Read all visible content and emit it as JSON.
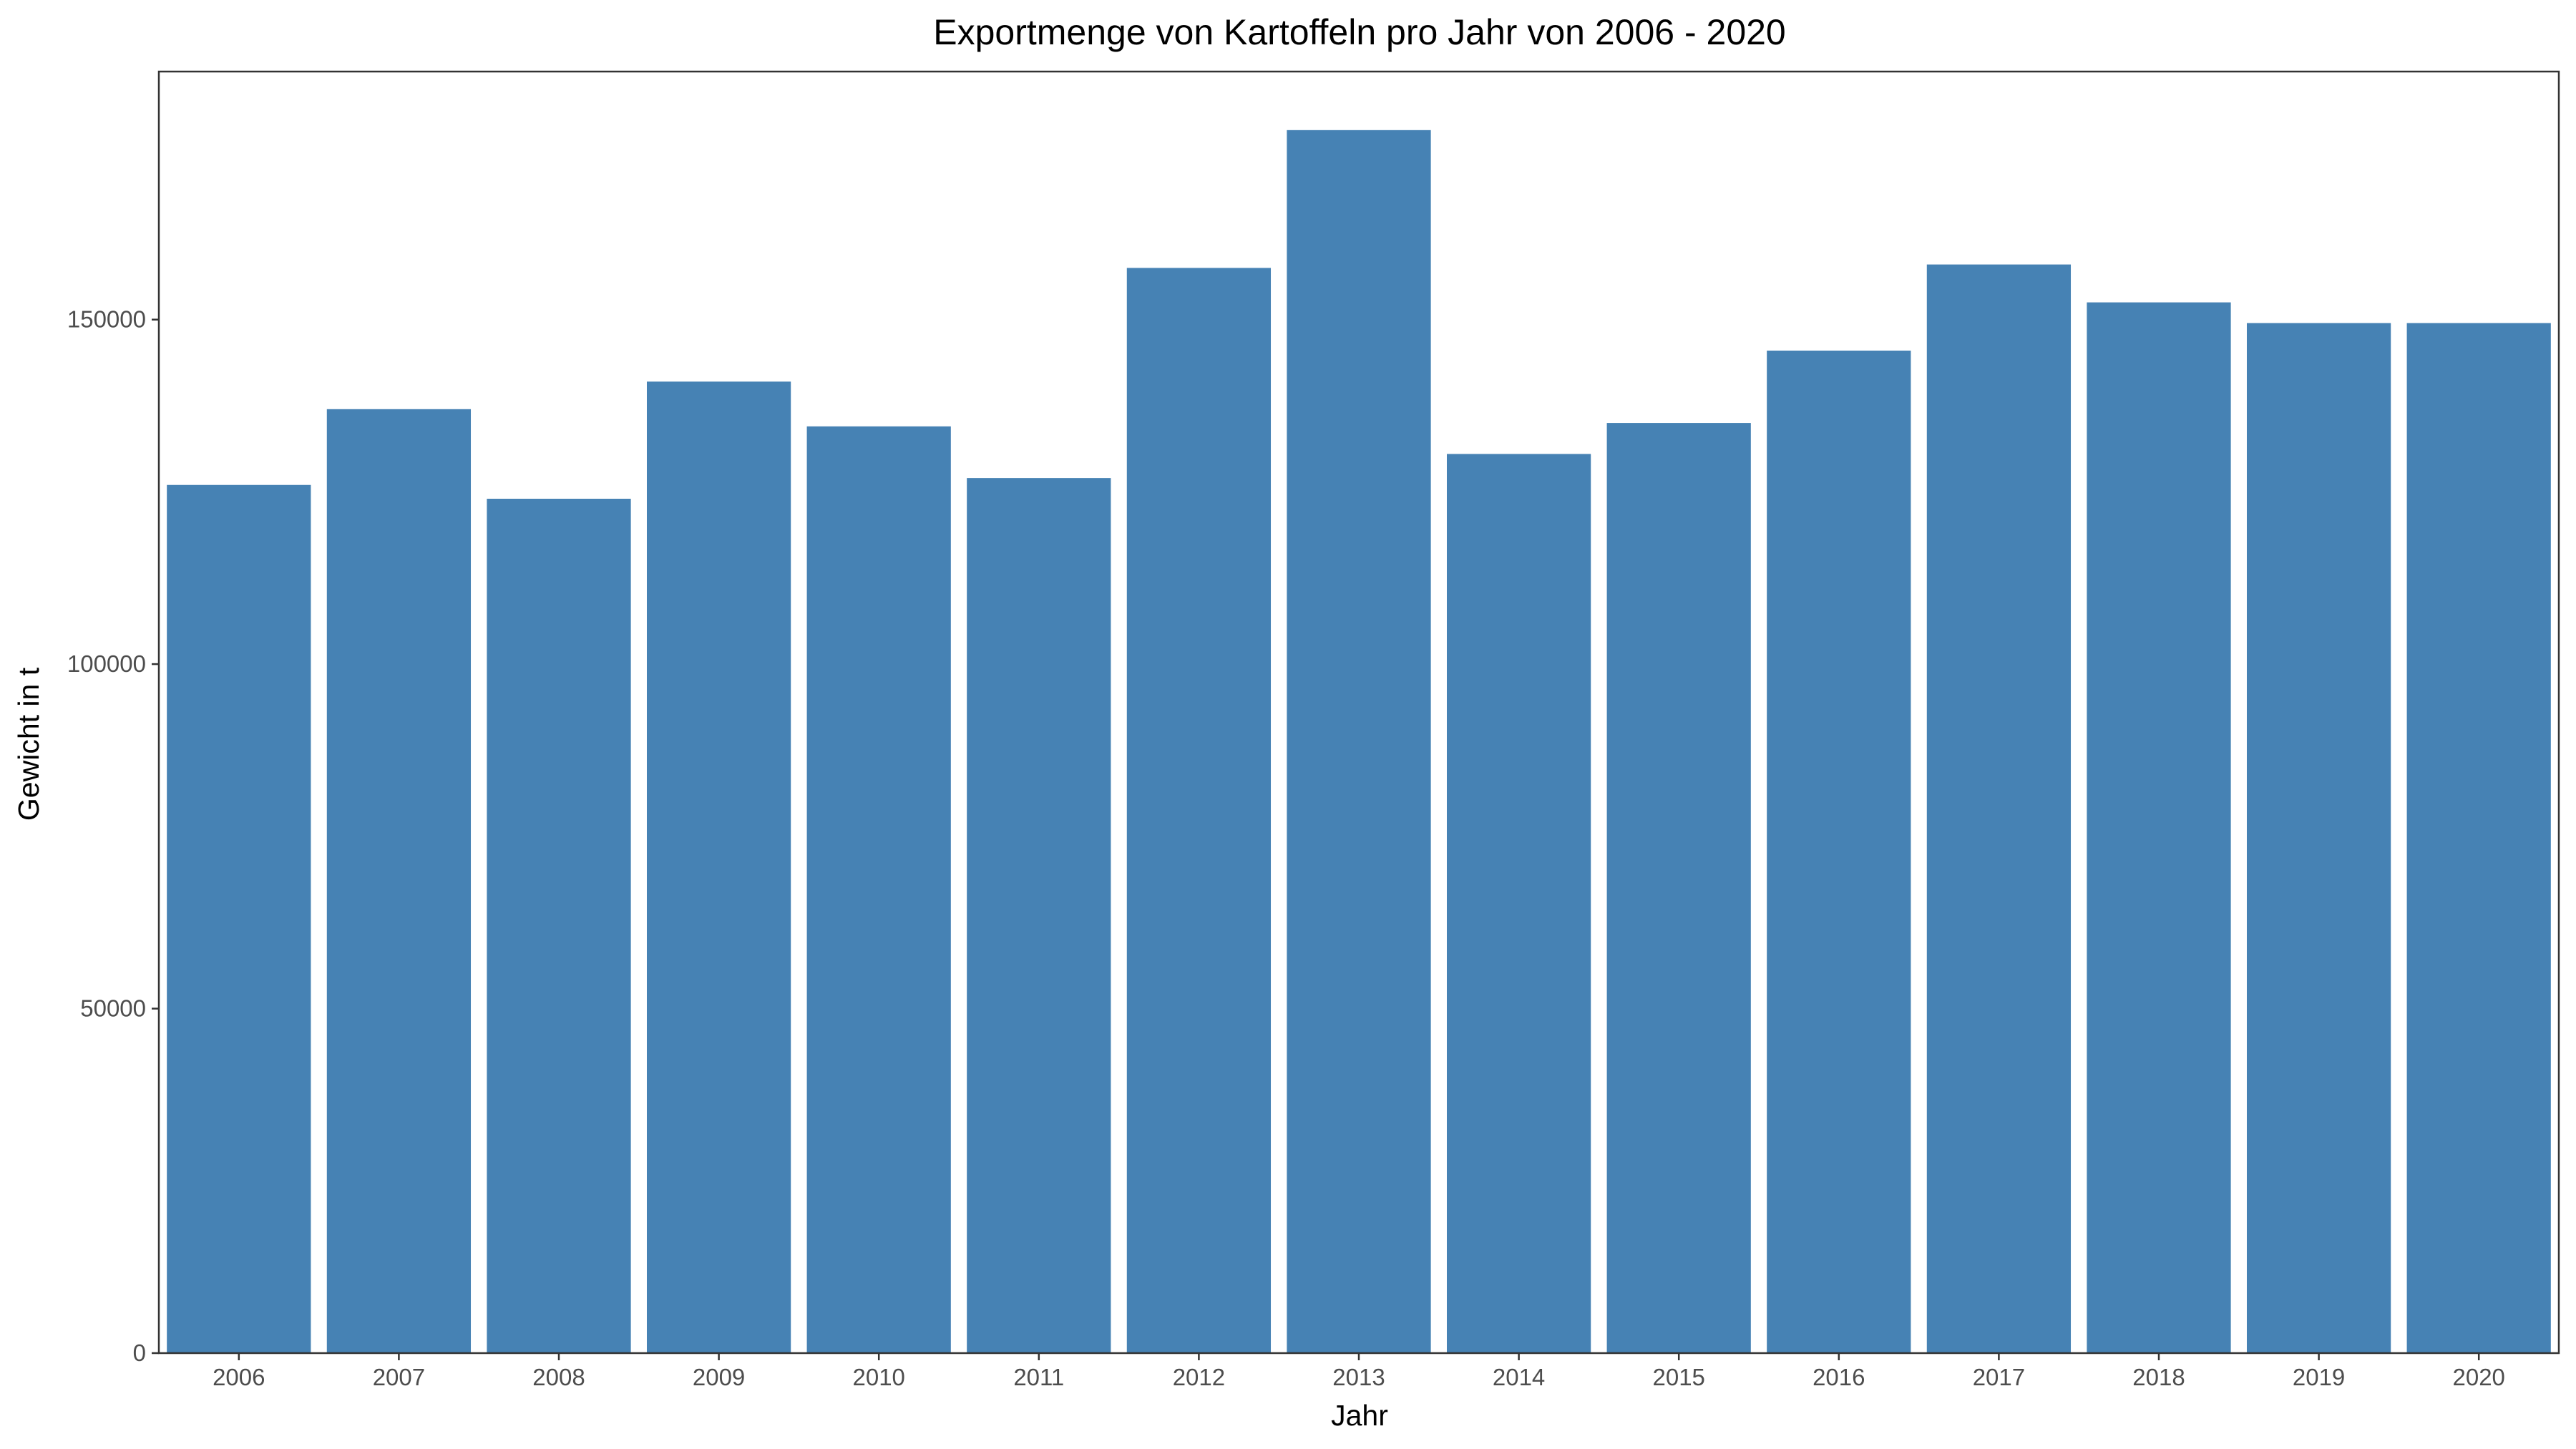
{
  "chart_data": {
    "type": "bar",
    "title": "Exportmenge von Kartoffeln pro Jahr von 2006 - 2020",
    "xlabel": "Jahr",
    "ylabel": "Gewicht in t",
    "categories": [
      "2006",
      "2007",
      "2008",
      "2009",
      "2010",
      "2011",
      "2012",
      "2013",
      "2014",
      "2015",
      "2016",
      "2017",
      "2018",
      "2019",
      "2020"
    ],
    "values": [
      126000,
      137000,
      124000,
      141000,
      134500,
      127000,
      157500,
      177500,
      130500,
      135000,
      145500,
      158000,
      152500,
      149500,
      149500
    ],
    "ylim": [
      0,
      186000
    ],
    "yticks": [
      0,
      50000,
      100000,
      150000
    ],
    "ytick_labels": [
      "0",
      "50000",
      "100000",
      "150000"
    ],
    "grid": false,
    "legend": "none",
    "bar_color": "#4682B4",
    "panel_border_color": "#333333"
  }
}
